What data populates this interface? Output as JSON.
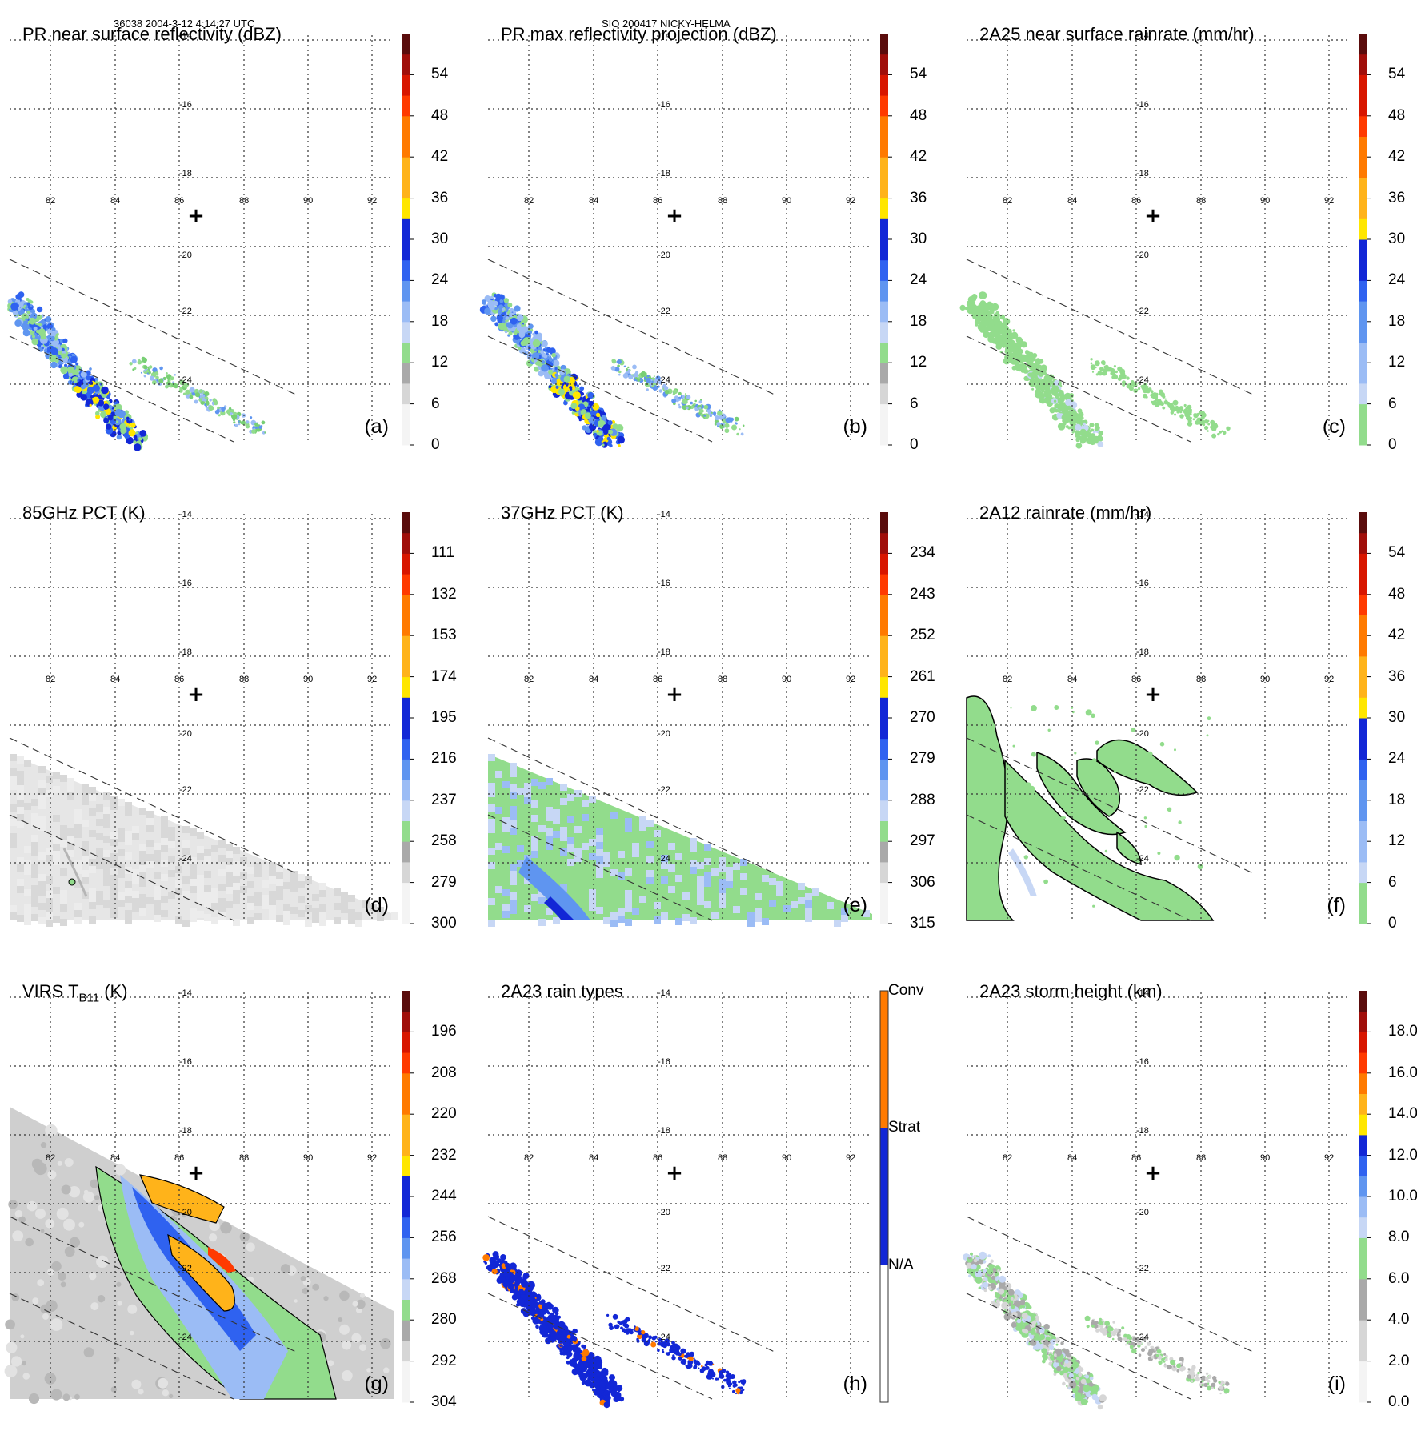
{
  "header": {
    "left": "36038 2004-3-12 4:14:27 UTC",
    "center": "SIO 200417 NICKY-HELMA"
  },
  "colors": {
    "grays": [
      "#f4f4f4",
      "#d6d6d6",
      "#a9a9a9"
    ],
    "greens": [
      "#92dc8c",
      "#78cf74"
    ],
    "blues": [
      "#c7d7f5",
      "#9bbcf5",
      "#5f95f0",
      "#2f62f0",
      "#1227d6"
    ],
    "warm": [
      "#ffe600",
      "#ffb31a",
      "#ff7a00",
      "#ff3a00",
      "#d81600",
      "#a00e0a",
      "#5a0c0c"
    ]
  },
  "chart_data": [
    {
      "id": "a",
      "type": "heatmap",
      "title": "PR near surface reflectivity (dBZ)",
      "panel_label": "(a)",
      "colorbar": {
        "ticks": [
          "0",
          "6",
          "12",
          "18",
          "24",
          "30",
          "36",
          "42",
          "48",
          "54"
        ],
        "range": [
          0,
          60
        ],
        "scheme": "dbz"
      }
    },
    {
      "id": "b",
      "type": "heatmap",
      "title": "PR max reflectivity projection (dBZ)",
      "panel_label": "(b)",
      "colorbar": {
        "ticks": [
          "0",
          "6",
          "12",
          "18",
          "24",
          "30",
          "36",
          "42",
          "48",
          "54"
        ],
        "range": [
          0,
          60
        ],
        "scheme": "dbz"
      }
    },
    {
      "id": "c",
      "type": "heatmap",
      "title": "2A25 near surface rainrate (mm/hr)",
      "panel_label": "(c)",
      "colorbar": {
        "ticks": [
          "0",
          "6",
          "12",
          "18",
          "24",
          "30",
          "36",
          "42",
          "48",
          "54"
        ],
        "range": [
          0,
          60
        ],
        "scheme": "rain"
      }
    },
    {
      "id": "d",
      "type": "heatmap",
      "title": "85GHz PCT (K)",
      "panel_label": "(d)",
      "colorbar": {
        "ticks": [
          "300",
          "279",
          "258",
          "237",
          "216",
          "195",
          "174",
          "153",
          "132",
          "111"
        ],
        "range": [
          300,
          90
        ],
        "scheme": "dbz"
      }
    },
    {
      "id": "e",
      "type": "heatmap",
      "title": "37GHz PCT (K)",
      "panel_label": "(e)",
      "colorbar": {
        "ticks": [
          "315",
          "306",
          "297",
          "288",
          "279",
          "270",
          "261",
          "252",
          "243",
          "234"
        ],
        "range": [
          315,
          225
        ],
        "scheme": "dbz"
      }
    },
    {
      "id": "f",
      "type": "heatmap",
      "title": "2A12 rainrate (mm/hr)",
      "panel_label": "(f)",
      "colorbar": {
        "ticks": [
          "0",
          "6",
          "12",
          "18",
          "24",
          "30",
          "36",
          "42",
          "48",
          "54"
        ],
        "range": [
          0,
          60
        ],
        "scheme": "rain"
      }
    },
    {
      "id": "g",
      "type": "heatmap",
      "title_main": "VIRS T",
      "title_sub": "B11",
      "title_tail": " (K)",
      "panel_label": "(g)",
      "colorbar": {
        "ticks": [
          "304",
          "292",
          "280",
          "268",
          "256",
          "244",
          "232",
          "220",
          "208",
          "196"
        ],
        "range": [
          304,
          184
        ],
        "scheme": "dbz"
      }
    },
    {
      "id": "h",
      "type": "heatmap",
      "title": "2A23 rain types",
      "panel_label": "(h)",
      "colorbar": {
        "categories": [
          "N/A",
          "Strat",
          "Conv"
        ],
        "scheme": "types"
      }
    },
    {
      "id": "i",
      "type": "heatmap",
      "title": "2A23 storm height (km)",
      "panel_label": "(i)",
      "colorbar": {
        "ticks": [
          "0.0",
          "2.0",
          "4.0",
          "6.0",
          "8.0",
          "10.0",
          "12.0",
          "14.0",
          "16.0",
          "18.0"
        ],
        "range": [
          0,
          20
        ],
        "scheme": "height"
      }
    }
  ],
  "map": {
    "lon_ticks": [
      "82",
      "84",
      "86",
      "88",
      "90",
      "92"
    ],
    "lat_ticks": [
      "-14",
      "-16",
      "-18",
      "-20",
      "-22",
      "-24"
    ],
    "center_marker": "+"
  }
}
